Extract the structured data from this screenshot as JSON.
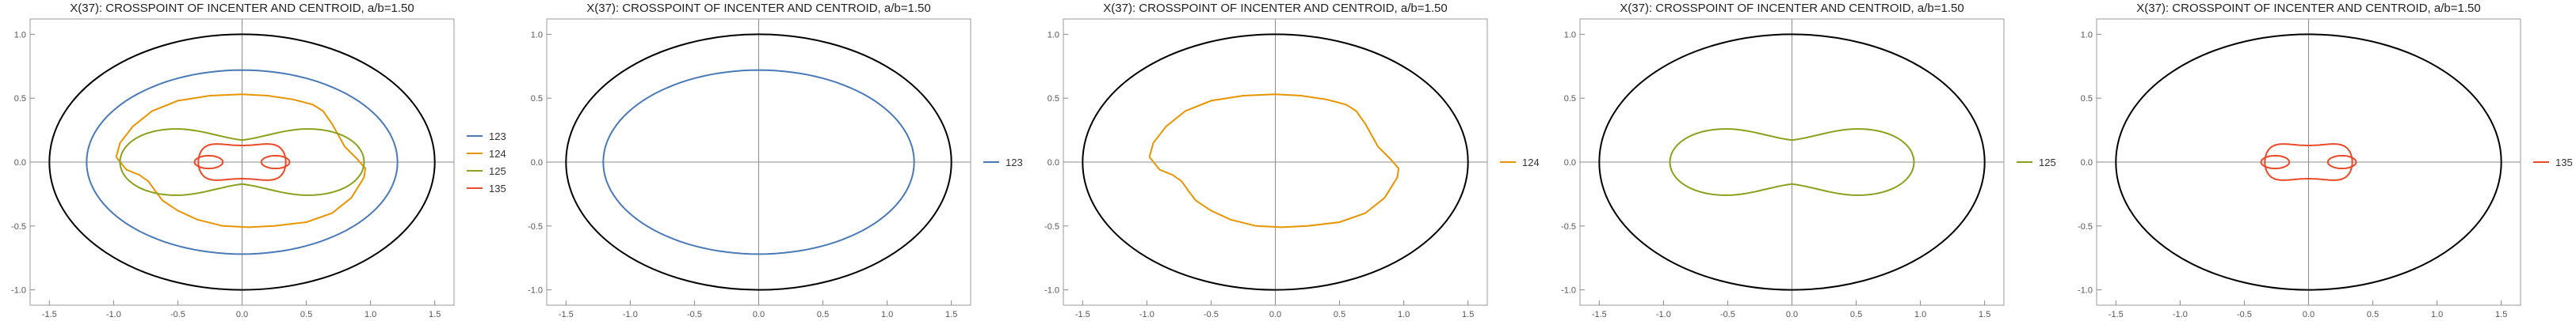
{
  "chart_data": [
    {
      "type": "line",
      "title": "X(37): CROSSPOINT OF INCENTER AND CENTROID, a/b=1.50",
      "xlim": [
        -1.65,
        1.65
      ],
      "ylim": [
        -1.12,
        1.12
      ],
      "xticks": [
        "-1.5",
        "-1.0",
        "-0.5",
        "0.0",
        "0.5",
        "1.0",
        "1.5"
      ],
      "yticks": [
        "-1.0",
        "-0.5",
        "0.0",
        "0.5",
        "1.0"
      ],
      "ellipse": {
        "a": 1.5,
        "b": 1.0
      },
      "legend": "right",
      "series": [
        {
          "name": "123",
          "color": "#4a79b6"
        },
        {
          "name": "124",
          "color": "#e69500"
        },
        {
          "name": "125",
          "color": "#8aa11e"
        },
        {
          "name": "135",
          "color": "#e84a2a"
        }
      ]
    },
    {
      "type": "line",
      "title": "X(37): CROSSPOINT OF INCENTER AND CENTROID, a/b=1.50",
      "xlim": [
        -1.65,
        1.65
      ],
      "ylim": [
        -1.12,
        1.12
      ],
      "xticks": [
        "-1.5",
        "-1.0",
        "-0.5",
        "0.0",
        "0.5",
        "1.0",
        "1.5"
      ],
      "yticks": [
        "-1.0",
        "-0.5",
        "0.0",
        "0.5",
        "1.0"
      ],
      "ellipse": {
        "a": 1.5,
        "b": 1.0
      },
      "legend": "right",
      "series": [
        {
          "name": "123",
          "color": "#4a79b6"
        }
      ]
    },
    {
      "type": "line",
      "title": "X(37): CROSSPOINT OF INCENTER AND CENTROID, a/b=1.50",
      "xlim": [
        -1.65,
        1.65
      ],
      "ylim": [
        -1.12,
        1.12
      ],
      "xticks": [
        "-1.5",
        "-1.0",
        "-0.5",
        "0.0",
        "0.5",
        "1.0",
        "1.5"
      ],
      "yticks": [
        "-1.0",
        "-0.5",
        "0.0",
        "0.5",
        "1.0"
      ],
      "ellipse": {
        "a": 1.5,
        "b": 1.0
      },
      "legend": "right",
      "series": [
        {
          "name": "124",
          "color": "#e69500"
        }
      ]
    },
    {
      "type": "line",
      "title": "X(37): CROSSPOINT OF INCENTER AND CENTROID, a/b=1.50",
      "xlim": [
        -1.65,
        1.65
      ],
      "ylim": [
        -1.12,
        1.12
      ],
      "xticks": [
        "-1.5",
        "-1.0",
        "-0.5",
        "0.0",
        "0.5",
        "1.0",
        "1.5"
      ],
      "yticks": [
        "-1.0",
        "-0.5",
        "0.0",
        "0.5",
        "1.0"
      ],
      "ellipse": {
        "a": 1.5,
        "b": 1.0
      },
      "legend": "right",
      "series": [
        {
          "name": "125",
          "color": "#8aa11e"
        }
      ]
    },
    {
      "type": "line",
      "title": "X(37): CROSSPOINT OF INCENTER AND CENTROID, a/b=1.50",
      "xlim": [
        -1.65,
        1.65
      ],
      "ylim": [
        -1.12,
        1.12
      ],
      "xticks": [
        "-1.5",
        "-1.0",
        "-0.5",
        "0.0",
        "0.5",
        "1.0",
        "1.5"
      ],
      "yticks": [
        "-1.0",
        "-0.5",
        "0.0",
        "0.5",
        "1.0"
      ],
      "ellipse": {
        "a": 1.5,
        "b": 1.0
      },
      "legend": "right",
      "series": [
        {
          "name": "135",
          "color": "#e84a2a"
        }
      ]
    }
  ]
}
